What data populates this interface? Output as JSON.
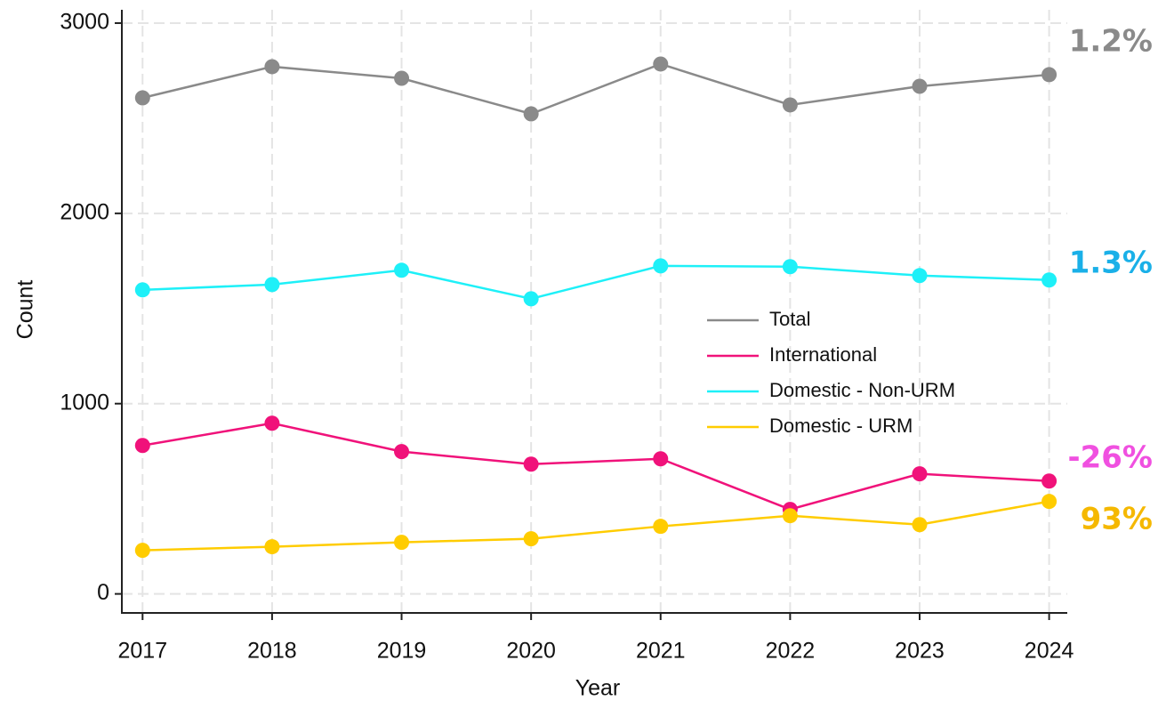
{
  "chart_data": {
    "type": "line",
    "xlabel": "Year",
    "ylabel": "Count",
    "x": [
      2017,
      2018,
      2019,
      2020,
      2021,
      2022,
      2023,
      2024
    ],
    "series": [
      {
        "name": "Total",
        "color": "#8a8a8a",
        "values": [
          2607,
          2771,
          2710,
          2523,
          2785,
          2570,
          2668,
          2729
        ]
      },
      {
        "name": "International",
        "color": "#f0127a",
        "values": [
          780,
          897,
          748,
          682,
          710,
          444,
          631,
          593
        ]
      },
      {
        "name": "Domestic - Non-URM",
        "color": "#1ef0f8",
        "values": [
          1598,
          1626,
          1701,
          1551,
          1724,
          1720,
          1673,
          1650
        ]
      },
      {
        "name": "Domestic - URM",
        "color": "#ffcc00",
        "values": [
          229,
          248,
          271,
          290,
          355,
          411,
          364,
          486
        ]
      }
    ],
    "annotations": [
      {
        "text": "1.2%",
        "color": "#8a8a8a"
      },
      {
        "text": "1.3%",
        "color": "#1ab0e8"
      },
      {
        "text": "-26%",
        "color": "#f050e0"
      },
      {
        "text": "93%",
        "color": "#f5b800"
      }
    ],
    "xlim": [
      2016.84,
      2024.14
    ],
    "xticks": [
      2017,
      2018,
      2019,
      2020,
      2021,
      2022,
      2023,
      2024
    ],
    "ylim": [
      -100,
      3070
    ],
    "yticks": [
      0,
      1000,
      2000,
      3000
    ],
    "grid": true,
    "legend": "center-right"
  }
}
